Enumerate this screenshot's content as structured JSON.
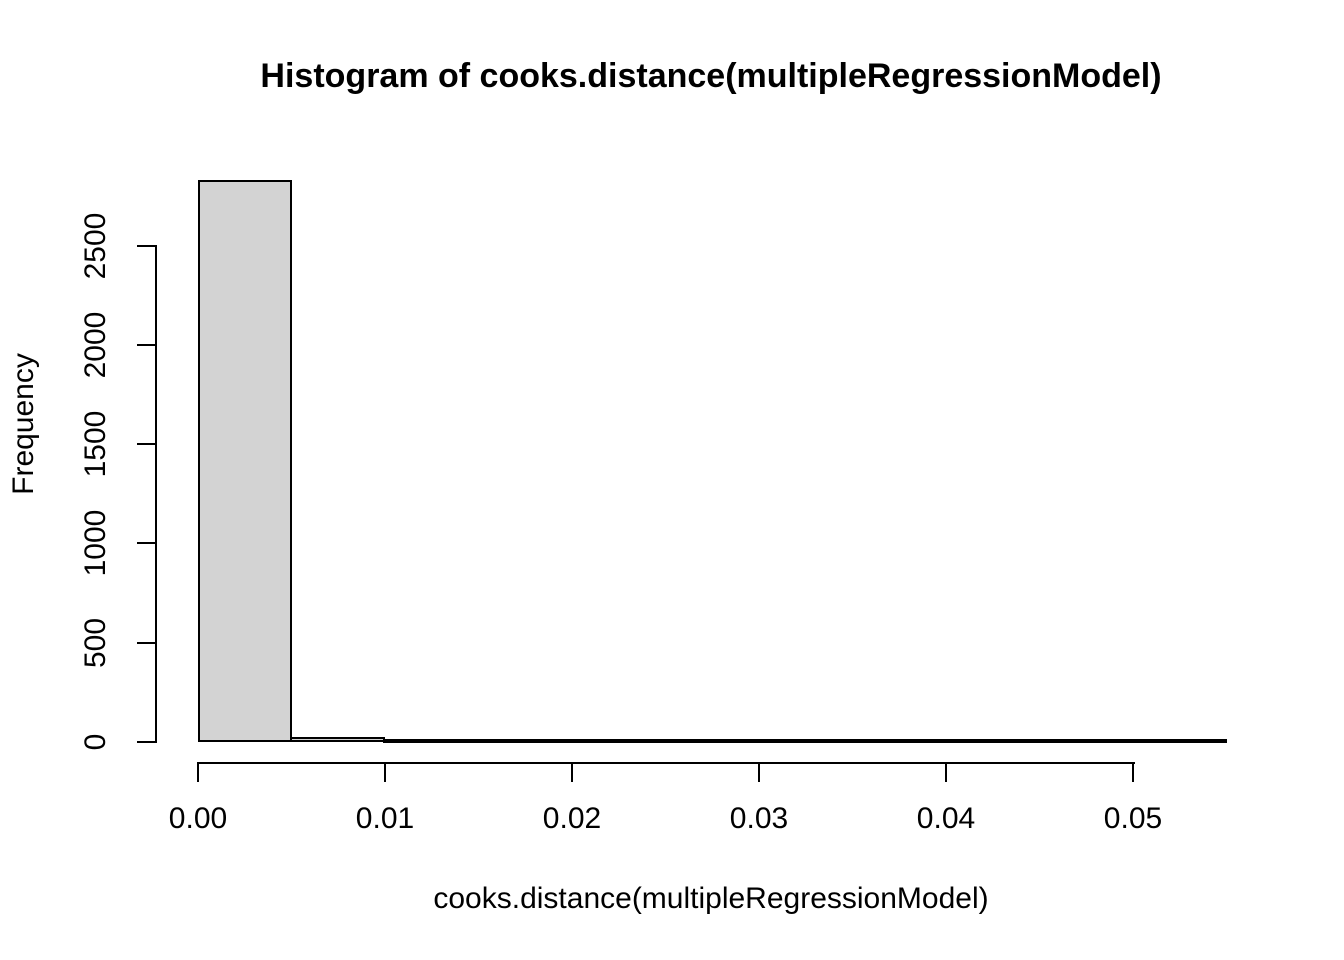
{
  "chart_data": {
    "type": "bar",
    "subtype": "histogram",
    "title": "Histogram of cooks.distance(multipleRegressionModel)",
    "xlabel": "cooks.distance(multipleRegressionModel)",
    "ylabel": "Frequency",
    "bin_edges": [
      0.0,
      0.005,
      0.01,
      0.015,
      0.02,
      0.025,
      0.03,
      0.035,
      0.04,
      0.045,
      0.05,
      0.055
    ],
    "counts": [
      2830,
      25,
      13,
      5,
      8,
      4,
      3,
      8,
      4,
      2,
      2
    ],
    "x_ticks": [
      {
        "value": 0.0,
        "label": "0.00"
      },
      {
        "value": 0.01,
        "label": "0.01"
      },
      {
        "value": 0.02,
        "label": "0.02"
      },
      {
        "value": 0.03,
        "label": "0.03"
      },
      {
        "value": 0.04,
        "label": "0.04"
      },
      {
        "value": 0.05,
        "label": "0.05"
      }
    ],
    "y_ticks": [
      {
        "value": 0,
        "label": "0"
      },
      {
        "value": 500,
        "label": "500"
      },
      {
        "value": 1000,
        "label": "1000"
      },
      {
        "value": 1500,
        "label": "1500"
      },
      {
        "value": 2000,
        "label": "2000"
      },
      {
        "value": 2500,
        "label": "2500"
      }
    ],
    "xlim": [
      0,
      0.055
    ],
    "ylim": [
      0,
      2850
    ],
    "grid": false,
    "legend": "none",
    "colors": {
      "bar_fill": "#d3d3d3",
      "bar_border": "#000000",
      "axis": "#000000",
      "text": "#000000",
      "background": "#ffffff"
    }
  }
}
